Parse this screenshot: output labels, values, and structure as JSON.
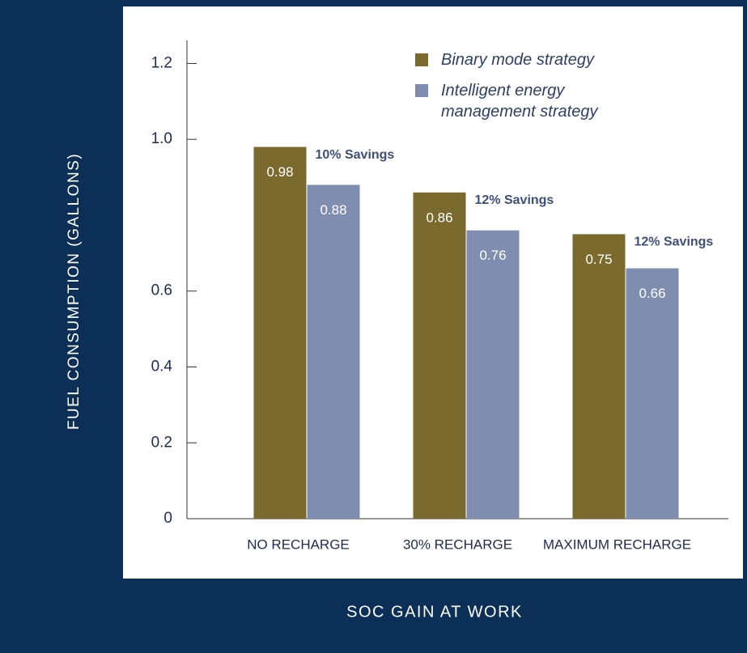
{
  "chart_data": {
    "type": "bar",
    "ylabel": "FUEL CONSUMPTION (GALLONS)",
    "xlabel": "SOC GAIN AT WORK",
    "categories": [
      "NO RECHARGE",
      "30% RECHARGE",
      "MAXIMUM RECHARGE"
    ],
    "series": [
      {
        "name": "Binary mode strategy",
        "color": "#7b6a2e",
        "values": [
          0.98,
          0.86,
          0.75
        ]
      },
      {
        "name": "Intelligent energy management strategy",
        "color": "#7f8db0",
        "values": [
          0.88,
          0.76,
          0.66
        ]
      }
    ],
    "annotations": [
      "10% Savings",
      "12% Savings",
      "12% Savings"
    ],
    "ylim": [
      0,
      1.25
    ],
    "yticks": [
      0,
      0.2,
      0.4,
      0.6,
      {
        "value": 1,
        "label": "1.0"
      },
      1.2
    ],
    "legend": "upper right"
  }
}
